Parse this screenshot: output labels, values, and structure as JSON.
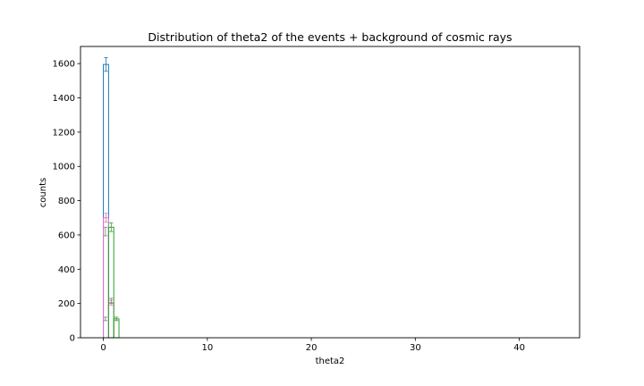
{
  "chart_data": {
    "type": "bar",
    "title": "Distribution of theta2 of the events + background of cosmic rays",
    "xlabel": "theta2",
    "ylabel": "counts",
    "xlim": [
      -2.2,
      45.8
    ],
    "ylim": [
      0,
      1700
    ],
    "xticks": [
      0,
      10,
      20,
      30,
      40
    ],
    "yticks": [
      0,
      200,
      400,
      600,
      800,
      1000,
      1200,
      1400,
      1600
    ],
    "grid": false,
    "bin_width": 0.5,
    "series": [
      {
        "color": "#1f77b4",
        "bins": [
          {
            "x0": 0.0,
            "value": 1595,
            "err": 40
          }
        ]
      },
      {
        "color": "#e377c2",
        "bins": [
          {
            "x0": 0.0,
            "value": 700,
            "err": 26
          },
          {
            "x0": 0.5,
            "value": 205,
            "err": 14
          }
        ]
      },
      {
        "color": "#2ca02c",
        "bins": [
          {
            "x0": 0.5,
            "value": 645,
            "err": 25
          },
          {
            "x0": 1.0,
            "value": 110,
            "err": 10
          }
        ]
      }
    ],
    "extra_error_points": [
      {
        "x": 0.2,
        "value": 620,
        "err": 25,
        "color": "#7f7f7f"
      },
      {
        "x": 0.2,
        "value": 110,
        "err": 10,
        "color": "#7f7f7f"
      },
      {
        "x": 0.75,
        "value": 215,
        "err": 15,
        "color": "#7f7f7f"
      }
    ]
  }
}
